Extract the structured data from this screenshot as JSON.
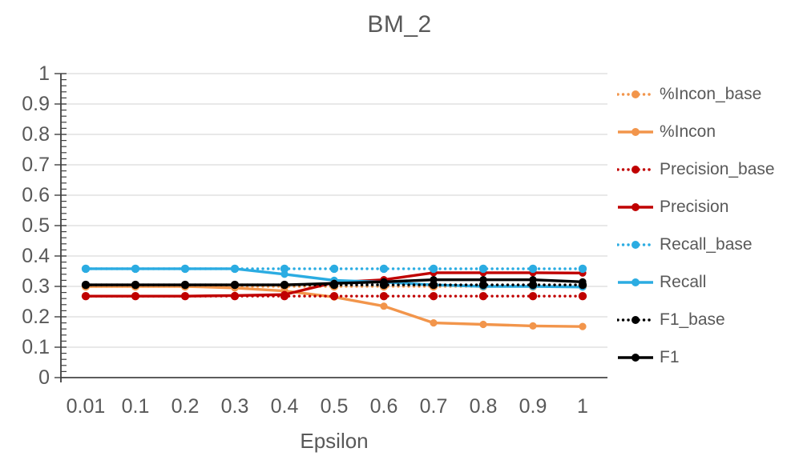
{
  "title": "BM_2",
  "x_axis": {
    "label": "Epsilon"
  },
  "styles": {
    "grid_color": "#D9D9D9",
    "axis_color": "#262626",
    "tick_color": "#404040",
    "text_color": "#595959"
  },
  "chart_data": {
    "type": "line",
    "title": "BM_2",
    "xlabel": "Epsilon",
    "ylabel": "",
    "x_tick_labels": [
      "0.01",
      "0.1",
      "0.2",
      "0.3",
      "0.4",
      "0.5",
      "0.6",
      "0.7",
      "0.8",
      "0.9",
      "1"
    ],
    "y_tick_labels": [
      "0",
      "0.1",
      "0.2",
      "0.3",
      "0.4",
      "0.5",
      "0.6",
      "0.7",
      "0.8",
      "0.9",
      "1"
    ],
    "ylim": [
      0,
      1
    ],
    "y_major_step": 0.1,
    "y_minor_step": 0.02,
    "grid": "horizontal-major",
    "legend_position": "right",
    "series": [
      {
        "name": "%Incon_base",
        "color": "#F2954B",
        "line_style": "dotted",
        "values": [
          0.3,
          0.3,
          0.3,
          0.3,
          0.3,
          0.3,
          0.3,
          0.3,
          0.3,
          0.3,
          0.3
        ]
      },
      {
        "name": "%Incon",
        "color": "#F2954B",
        "line_style": "solid",
        "values": [
          0.3,
          0.3,
          0.3,
          0.295,
          0.285,
          0.265,
          0.235,
          0.18,
          0.175,
          0.17,
          0.168
        ]
      },
      {
        "name": "Precision_base",
        "color": "#C00000",
        "line_style": "dotted",
        "values": [
          0.268,
          0.268,
          0.268,
          0.268,
          0.268,
          0.268,
          0.268,
          0.268,
          0.268,
          0.268,
          0.268
        ]
      },
      {
        "name": "Precision",
        "color": "#C00000",
        "line_style": "solid",
        "values": [
          0.268,
          0.268,
          0.268,
          0.27,
          0.273,
          0.313,
          0.322,
          0.345,
          0.345,
          0.345,
          0.344
        ]
      },
      {
        "name": "Recall_base",
        "color": "#2BACE2",
        "line_style": "dotted",
        "values": [
          0.358,
          0.358,
          0.358,
          0.358,
          0.358,
          0.358,
          0.358,
          0.358,
          0.358,
          0.358,
          0.358
        ]
      },
      {
        "name": "Recall",
        "color": "#2BACE2",
        "line_style": "solid",
        "values": [
          0.358,
          0.358,
          0.358,
          0.358,
          0.34,
          0.32,
          0.314,
          0.305,
          0.3,
          0.3,
          0.298
        ]
      },
      {
        "name": "F1_base",
        "color": "#000000",
        "line_style": "dotted",
        "values": [
          0.305,
          0.305,
          0.305,
          0.305,
          0.305,
          0.305,
          0.305,
          0.305,
          0.305,
          0.305,
          0.305
        ]
      },
      {
        "name": "F1",
        "color": "#000000",
        "line_style": "solid",
        "values": [
          0.305,
          0.305,
          0.305,
          0.305,
          0.305,
          0.31,
          0.315,
          0.322,
          0.322,
          0.322,
          0.315
        ]
      }
    ]
  }
}
